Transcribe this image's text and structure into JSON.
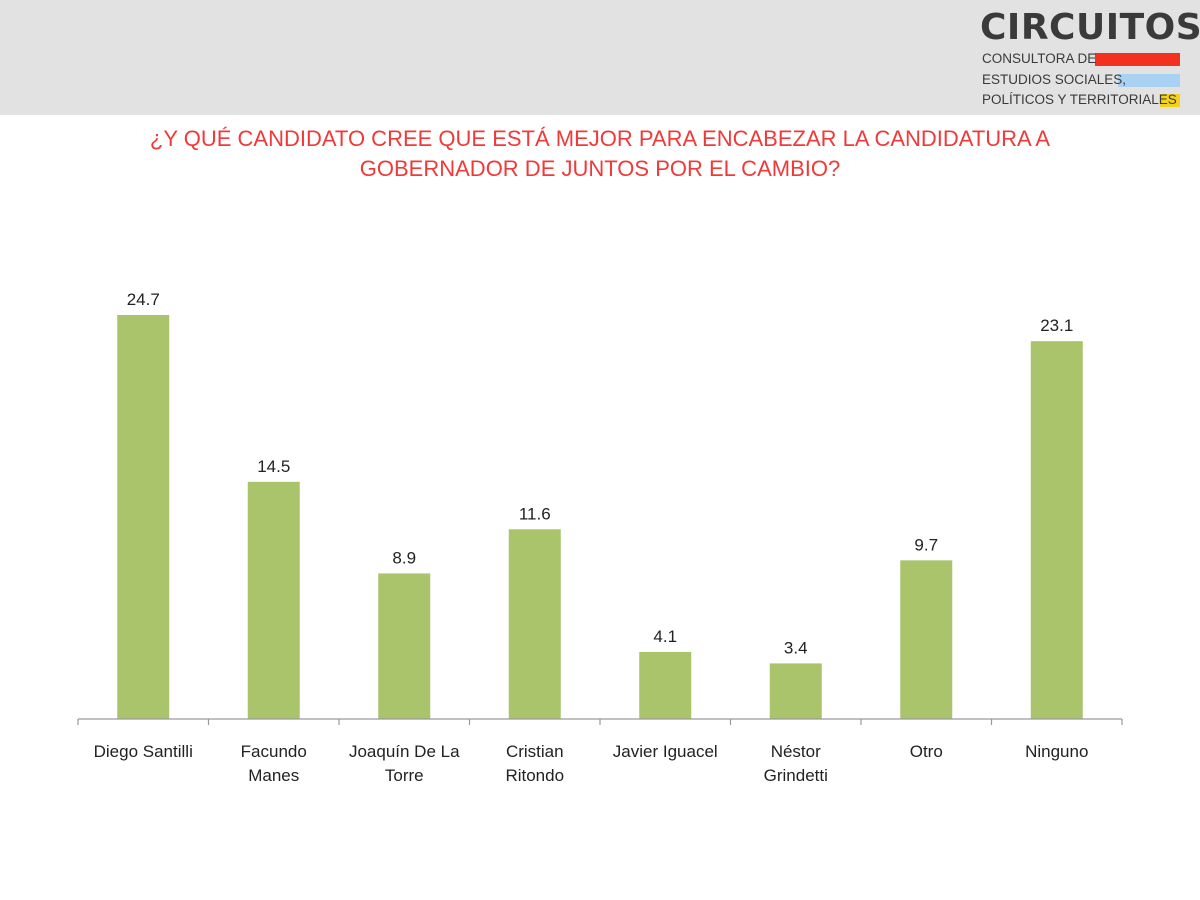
{
  "header": {
    "background": "#e2e2e2"
  },
  "logo": {
    "name": "CIRCUITOS",
    "line1": "CONSULTORA DE",
    "line2": "ESTUDIOS SOCIALES,",
    "line3": "POLÍTICOS Y TERRITORIALES",
    "stripe_colors": [
      "#f2321e",
      "#a9d2f2",
      "#f5d21a"
    ]
  },
  "question": {
    "line1": "¿Y QUÉ CANDIDATO CREE QUE ESTÁ MEJOR PARA ENCABEZAR LA CANDIDATURA A",
    "line2": "GOBERNADOR DE JUNTOS POR EL CAMBIO?",
    "color": "#f03a3a"
  },
  "chart_data": {
    "type": "bar",
    "title": "¿Y QUÉ CANDIDATO CREE QUE ESTÁ MEJOR PARA ENCABEZAR LA CANDIDATURA A GOBERNADOR DE JUNTOS POR EL CAMBIO?",
    "categories": [
      [
        "Diego Santilli"
      ],
      [
        "Facundo",
        "Manes"
      ],
      [
        "Joaquín De La",
        "Torre"
      ],
      [
        "Cristian",
        "Ritondo"
      ],
      [
        "Javier Iguacel"
      ],
      [
        "Néstor",
        "Grindetti"
      ],
      [
        "Otro"
      ],
      [
        "Ninguno"
      ]
    ],
    "values": [
      24.7,
      14.5,
      8.9,
      11.6,
      4.1,
      3.4,
      9.7,
      23.1
    ],
    "value_labels": [
      "24.7",
      "14.5",
      "8.9",
      "11.6",
      "4.1",
      "3.4",
      "9.7",
      "23.1"
    ],
    "ylim": [
      0,
      24.7
    ],
    "bar_color": "#a9c46a",
    "grid": false,
    "legend": "none"
  }
}
